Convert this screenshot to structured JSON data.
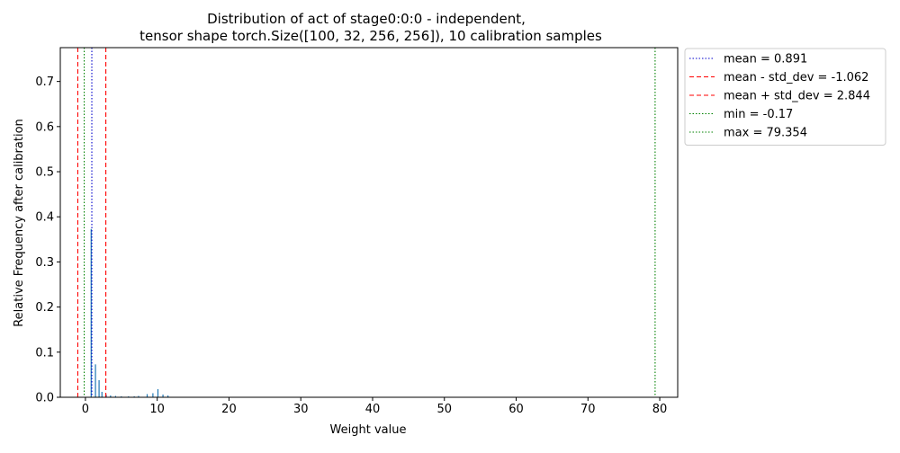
{
  "chart_data": {
    "type": "bar",
    "title_lines": [
      "Distribution of act of stage0:0:0 - independent,",
      "tensor shape torch.Size([100, 32, 256, 256]), 10 calibration samples"
    ],
    "xlabel": "Weight value",
    "ylabel": "Relative Frequency after calibration",
    "xlim": [
      -3.5,
      82.5
    ],
    "ylim": [
      0,
      0.775
    ],
    "x_ticks": [
      0,
      10,
      20,
      30,
      40,
      50,
      60,
      70,
      80
    ],
    "y_ticks": [
      0.0,
      0.1,
      0.2,
      0.3,
      0.4,
      0.5,
      0.6,
      0.7
    ],
    "y_tick_labels": [
      "0.0",
      "0.1",
      "0.2",
      "0.3",
      "0.4",
      "0.5",
      "0.6",
      "0.7"
    ],
    "bar_color": "#1f77b4",
    "bars": [
      {
        "x": 0.8,
        "y": 0.373
      },
      {
        "x": 1.4,
        "y": 0.073
      },
      {
        "x": 1.9,
        "y": 0.038
      },
      {
        "x": 2.3,
        "y": 0.012
      },
      {
        "x": 2.9,
        "y": 0.006
      },
      {
        "x": 3.5,
        "y": 0.004
      },
      {
        "x": 4.2,
        "y": 0.003
      },
      {
        "x": 5.0,
        "y": 0.002
      },
      {
        "x": 6.0,
        "y": 0.002
      },
      {
        "x": 6.8,
        "y": 0.002
      },
      {
        "x": 7.4,
        "y": 0.003
      },
      {
        "x": 8.6,
        "y": 0.007
      },
      {
        "x": 9.4,
        "y": 0.009
      },
      {
        "x": 10.1,
        "y": 0.018
      },
      {
        "x": 10.8,
        "y": 0.006
      },
      {
        "x": 11.5,
        "y": 0.004
      }
    ],
    "vlines": [
      {
        "x": 0.891,
        "label": "mean = 0.891",
        "color": "#0000cc",
        "dash": "1.5,2"
      },
      {
        "x": -1.062,
        "label": "mean - std_dev = -1.062",
        "color": "#ff0000",
        "dash": "5,3"
      },
      {
        "x": 2.844,
        "label": "mean + std_dev = 2.844",
        "color": "#ff0000",
        "dash": "5,3"
      },
      {
        "x": -0.17,
        "label": "min = -0.17",
        "color": "#008000",
        "dash": "1.5,2"
      },
      {
        "x": 79.354,
        "label": "max = 79.354",
        "color": "#008000",
        "dash": "1.5,2"
      }
    ],
    "legend_position": "outside right, top"
  }
}
